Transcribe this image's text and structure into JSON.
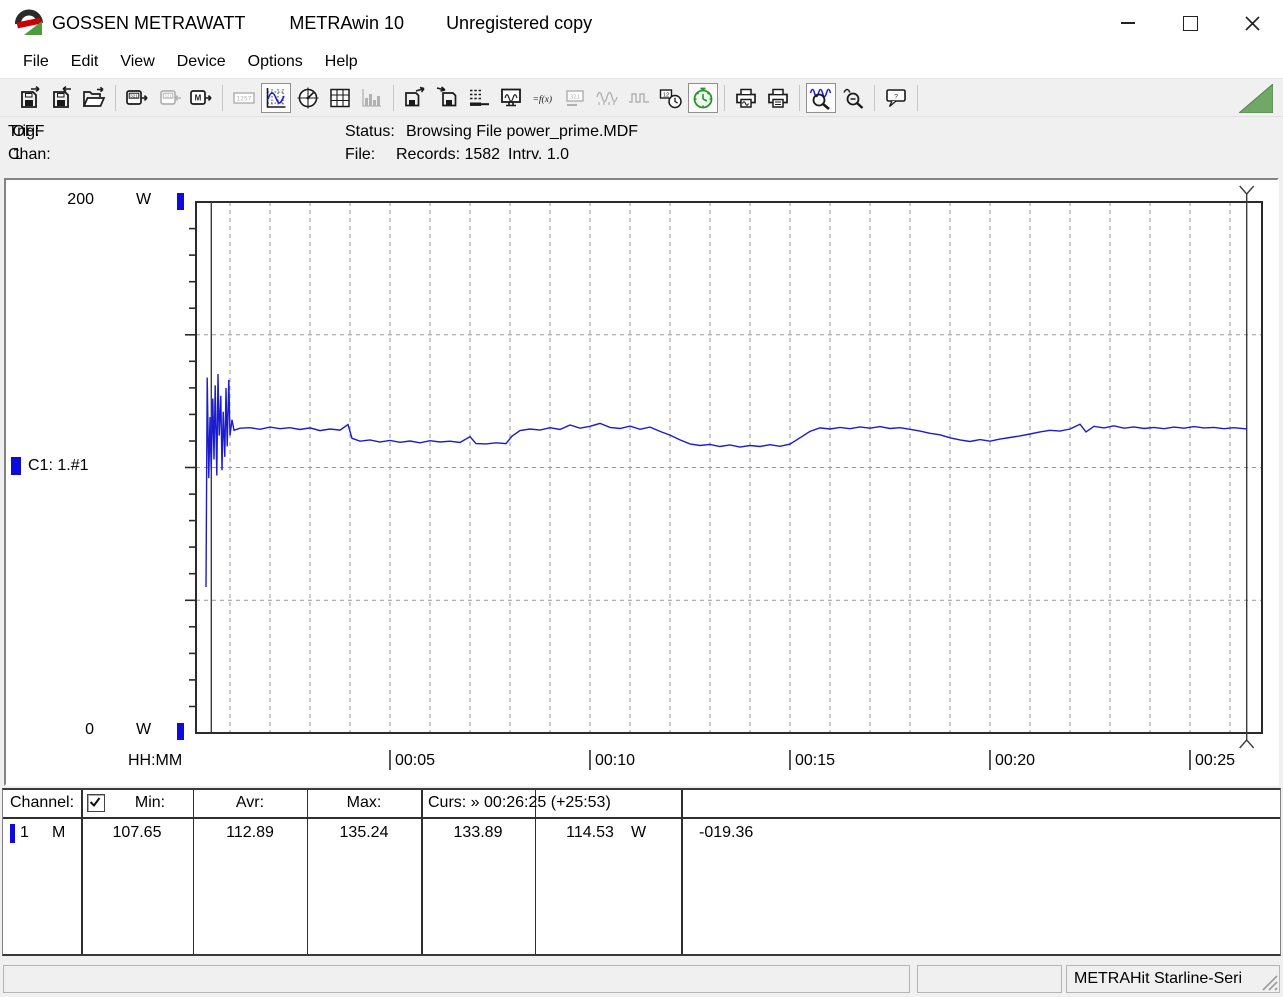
{
  "window": {
    "title_brand": "GOSSEN METRAWATT",
    "title_app": "METRAwin 10",
    "title_status": "Unregistered copy",
    "controls": [
      "minimize",
      "maximize",
      "close"
    ]
  },
  "menu": {
    "items": [
      "File",
      "Edit",
      "View",
      "Device",
      "Options",
      "Help"
    ]
  },
  "toolbar": {
    "buttons": [
      {
        "name": "file-save-out",
        "icon": "file-save-out",
        "state": "normal"
      },
      {
        "name": "file-save-in",
        "icon": "file-save-in",
        "state": "normal"
      },
      {
        "name": "file-open",
        "icon": "file-open",
        "state": "normal"
      },
      {
        "separator": true
      },
      {
        "name": "device-read",
        "icon": "device-read",
        "state": "normal"
      },
      {
        "name": "device-write",
        "icon": "device-write",
        "state": "disabled"
      },
      {
        "name": "memory-read",
        "icon": "memory-read",
        "state": "normal"
      },
      {
        "separator": true
      },
      {
        "name": "view-numeric",
        "icon": "view-numeric",
        "state": "disabled"
      },
      {
        "name": "view-chart",
        "icon": "view-chart",
        "state": "pressed"
      },
      {
        "name": "view-meter",
        "icon": "view-meter",
        "state": "normal"
      },
      {
        "name": "view-table",
        "icon": "view-table",
        "state": "normal"
      },
      {
        "name": "view-histogram",
        "icon": "view-histogram",
        "state": "disabled"
      },
      {
        "separator": true
      },
      {
        "name": "data-export",
        "icon": "data-export",
        "state": "normal"
      },
      {
        "name": "data-import",
        "icon": "data-import",
        "state": "normal"
      },
      {
        "name": "channel-settings",
        "icon": "channel-settings",
        "state": "normal"
      },
      {
        "name": "online-monitor",
        "icon": "online-monitor",
        "state": "normal"
      },
      {
        "name": "formula",
        "icon": "formula",
        "state": "normal"
      },
      {
        "name": "display-digits",
        "icon": "display-digits",
        "state": "disabled"
      },
      {
        "name": "waveform-sine",
        "icon": "waveform-sine",
        "state": "disabled"
      },
      {
        "name": "waveform-pulse",
        "icon": "waveform-pulse",
        "state": "disabled"
      },
      {
        "name": "time-settings",
        "icon": "time-settings",
        "state": "normal"
      },
      {
        "name": "timer",
        "icon": "timer",
        "state": "pressed"
      },
      {
        "separator": true
      },
      {
        "name": "print-preview",
        "icon": "print-preview",
        "state": "normal"
      },
      {
        "name": "print",
        "icon": "print",
        "state": "normal"
      },
      {
        "separator": true
      },
      {
        "name": "zoom-mode",
        "icon": "zoom-mode",
        "state": "pressed"
      },
      {
        "name": "zoom-out",
        "icon": "zoom-out",
        "state": "normal"
      },
      {
        "separator": true
      },
      {
        "name": "annotation",
        "icon": "annotation",
        "state": "normal"
      },
      {
        "separator": true
      }
    ]
  },
  "info_panel": {
    "trig_label": "Trig:",
    "trig_value": "OFF",
    "chan_label": "Chan:",
    "chan_value": "1",
    "status_label": "Status:",
    "status_value": "Browsing File power_prime.MDF",
    "file_label": "File:",
    "records": "Records: 1582",
    "interval": "Intrv. 1.0"
  },
  "chart_data": {
    "type": "line",
    "title": "",
    "xlabel": "HH:MM",
    "ylabel": "W",
    "y_max_label": "200",
    "y_min_label": "0",
    "ylim": [
      0,
      200
    ],
    "xlim_minutes": [
      0.15,
      26.8
    ],
    "grid": {
      "on": true,
      "y_lines_w": [
        50,
        100,
        150
      ],
      "x_interval_min": 1
    },
    "x_ticks": [
      {
        "min": 5,
        "label": "00:05"
      },
      {
        "min": 10,
        "label": "00:10"
      },
      {
        "min": 15,
        "label": "00:15"
      },
      {
        "min": 20,
        "label": "00:20"
      },
      {
        "min": 25,
        "label": "00:25"
      }
    ],
    "channel": {
      "id": "C1: 1.#1",
      "color": "#1c1ccd",
      "unit": "W"
    },
    "cursors": {
      "c1_min": 0.533,
      "c2_min": 26.417
    },
    "series": [
      {
        "name": "C1: 1.#1",
        "unit": "W",
        "points": [
          [
            0.4,
            55
          ],
          [
            0.43,
            133.9
          ],
          [
            0.47,
            96
          ],
          [
            0.5,
            119
          ],
          [
            0.53,
            99
          ],
          [
            0.57,
            126
          ],
          [
            0.6,
            103
          ],
          [
            0.63,
            131
          ],
          [
            0.67,
            97
          ],
          [
            0.7,
            135.2
          ],
          [
            0.73,
            112
          ],
          [
            0.77,
            127
          ],
          [
            0.8,
            99
          ],
          [
            0.83,
            121
          ],
          [
            0.87,
            104
          ],
          [
            0.9,
            130
          ],
          [
            0.93,
            108
          ],
          [
            0.97,
            133
          ],
          [
            1.0,
            112
          ],
          [
            1.05,
            118
          ],
          [
            1.1,
            114
          ],
          [
            1.25,
            114.8
          ],
          [
            1.5,
            115.0
          ],
          [
            1.75,
            114.4
          ],
          [
            2.0,
            115.2
          ],
          [
            2.25,
            114.6
          ],
          [
            2.5,
            115.0
          ],
          [
            2.75,
            114.3
          ],
          [
            3.0,
            114.9
          ],
          [
            3.25,
            113.9
          ],
          [
            3.5,
            114.5
          ],
          [
            3.75,
            114.1
          ],
          [
            3.95,
            116.2
          ],
          [
            4.05,
            111.0
          ],
          [
            4.25,
            109.9
          ],
          [
            4.5,
            110.4
          ],
          [
            4.75,
            109.6
          ],
          [
            5.0,
            110.2
          ],
          [
            5.25,
            109.5
          ],
          [
            5.5,
            110.0
          ],
          [
            5.75,
            109.3
          ],
          [
            6.0,
            110.1
          ],
          [
            6.25,
            109.6
          ],
          [
            6.5,
            109.9
          ],
          [
            6.75,
            109.4
          ],
          [
            7.0,
            111.6
          ],
          [
            7.15,
            109.0
          ],
          [
            7.4,
            108.9
          ],
          [
            7.65,
            109.3
          ],
          [
            7.9,
            109.0
          ],
          [
            8.05,
            111.8
          ],
          [
            8.25,
            113.9
          ],
          [
            8.5,
            114.5
          ],
          [
            8.75,
            114.1
          ],
          [
            9.0,
            115.0
          ],
          [
            9.25,
            114.3
          ],
          [
            9.5,
            116.0
          ],
          [
            9.75,
            114.8
          ],
          [
            10.0,
            115.5
          ],
          [
            10.25,
            116.6
          ],
          [
            10.5,
            115.1
          ],
          [
            10.75,
            114.7
          ],
          [
            11.0,
            115.6
          ],
          [
            11.25,
            114.4
          ],
          [
            11.5,
            115.2
          ],
          [
            11.75,
            113.6
          ],
          [
            12.0,
            112.2
          ],
          [
            12.25,
            110.4
          ],
          [
            12.5,
            108.9
          ],
          [
            12.75,
            108.3
          ],
          [
            13.0,
            108.7
          ],
          [
            13.25,
            107.9
          ],
          [
            13.5,
            108.5
          ],
          [
            13.75,
            107.7
          ],
          [
            14.0,
            108.3
          ],
          [
            14.25,
            107.9
          ],
          [
            14.5,
            108.6
          ],
          [
            14.75,
            108.0
          ],
          [
            15.0,
            108.8
          ],
          [
            15.25,
            111.2
          ],
          [
            15.5,
            113.6
          ],
          [
            15.75,
            114.9
          ],
          [
            16.0,
            114.5
          ],
          [
            16.25,
            115.1
          ],
          [
            16.5,
            114.6
          ],
          [
            16.75,
            115.3
          ],
          [
            17.0,
            114.8
          ],
          [
            17.25,
            115.4
          ],
          [
            17.5,
            114.7
          ],
          [
            17.75,
            115.0
          ],
          [
            18.0,
            114.4
          ],
          [
            18.25,
            113.7
          ],
          [
            18.5,
            112.9
          ],
          [
            18.75,
            112.3
          ],
          [
            19.0,
            111.2
          ],
          [
            19.25,
            110.4
          ],
          [
            19.5,
            109.8
          ],
          [
            19.75,
            110.5
          ],
          [
            20.0,
            109.9
          ],
          [
            20.25,
            110.7
          ],
          [
            20.5,
            111.3
          ],
          [
            20.75,
            111.9
          ],
          [
            21.0,
            112.6
          ],
          [
            21.25,
            113.4
          ],
          [
            21.5,
            114.0
          ],
          [
            21.75,
            113.7
          ],
          [
            22.0,
            114.5
          ],
          [
            22.25,
            116.3
          ],
          [
            22.4,
            113.4
          ],
          [
            22.6,
            115.5
          ],
          [
            22.85,
            114.9
          ],
          [
            23.1,
            115.7
          ],
          [
            23.35,
            114.8
          ],
          [
            23.6,
            115.3
          ],
          [
            23.85,
            114.7
          ],
          [
            24.1,
            115.1
          ],
          [
            24.35,
            114.6
          ],
          [
            24.6,
            115.2
          ],
          [
            24.85,
            114.8
          ],
          [
            25.1,
            115.4
          ],
          [
            25.35,
            114.9
          ],
          [
            25.6,
            115.1
          ],
          [
            25.85,
            114.6
          ],
          [
            26.1,
            115.0
          ],
          [
            26.42,
            114.53
          ]
        ]
      }
    ]
  },
  "cursor_table": {
    "header": {
      "channel": "Channel:",
      "checkbox_checked": true,
      "min": "Min:",
      "avr": "Avr:",
      "max": "Max:",
      "curs": "Curs: » 00:26:25 (+25:53)"
    },
    "row": {
      "channel_num": "1",
      "mode": "M",
      "min": "107.65",
      "avr": "112.89",
      "max": "135.24",
      "curs1": "133.89",
      "curs2": "114.53",
      "unit": "W",
      "delta": "-019.36"
    }
  },
  "status_bar": {
    "device": "METRAHit Starline-Seri"
  },
  "colors": {
    "trace": "#1c1ccd",
    "channel_marker": "#0b0bdd",
    "timer_green": "#2e8f2e",
    "corner_green": "#71a866"
  }
}
